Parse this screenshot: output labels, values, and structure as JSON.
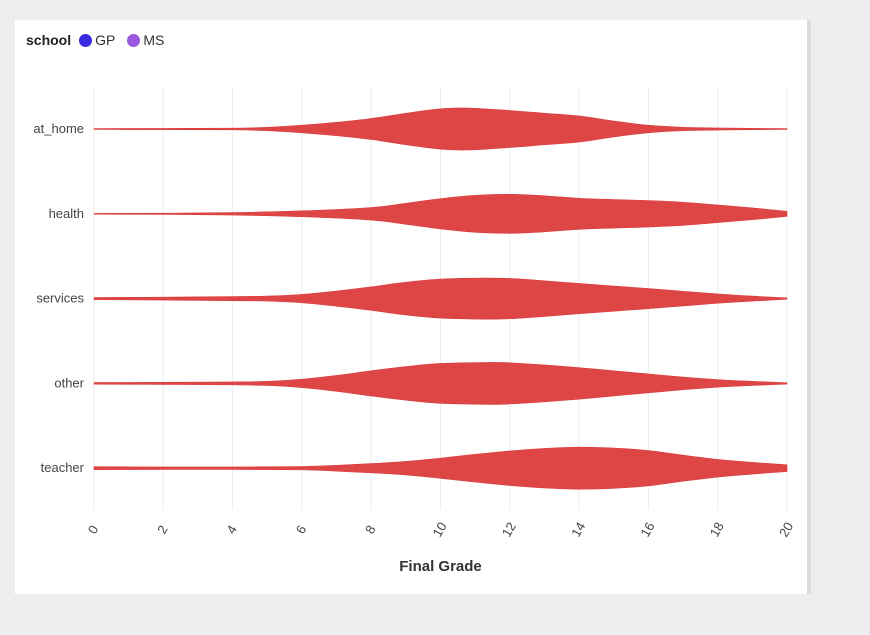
{
  "legend": {
    "title": "school",
    "items": [
      {
        "label": "GP",
        "color": "#3a2be0"
      },
      {
        "label": "MS",
        "color": "#9b59e0"
      }
    ]
  },
  "chart_data": {
    "type": "violin",
    "xlabel": "Final Grade",
    "ylabel": "",
    "xlim": [
      0,
      20
    ],
    "x_ticks": [
      0,
      2,
      4,
      6,
      8,
      10,
      12,
      14,
      16,
      18,
      20
    ],
    "grid": true,
    "categories": [
      "at_home",
      "health",
      "services",
      "other",
      "teacher"
    ],
    "violin_color": "#dc3c3c",
    "series": [
      {
        "name": "at_home",
        "density": [
          [
            0,
            0.02
          ],
          [
            2,
            0.03
          ],
          [
            4,
            0.04
          ],
          [
            5,
            0.08
          ],
          [
            6,
            0.18
          ],
          [
            7,
            0.32
          ],
          [
            8,
            0.5
          ],
          [
            9,
            0.75
          ],
          [
            10,
            0.96
          ],
          [
            10.8,
            1.0
          ],
          [
            12,
            0.88
          ],
          [
            13,
            0.75
          ],
          [
            14,
            0.62
          ],
          [
            15,
            0.38
          ],
          [
            16,
            0.18
          ],
          [
            17,
            0.08
          ],
          [
            18,
            0.05
          ],
          [
            20,
            0.02
          ]
        ]
      },
      {
        "name": "health",
        "density": [
          [
            0,
            0.02
          ],
          [
            2,
            0.03
          ],
          [
            4,
            0.06
          ],
          [
            6,
            0.14
          ],
          [
            8,
            0.3
          ],
          [
            9,
            0.5
          ],
          [
            10,
            0.72
          ],
          [
            11,
            0.88
          ],
          [
            12,
            0.93
          ],
          [
            13,
            0.86
          ],
          [
            14,
            0.74
          ],
          [
            15,
            0.68
          ],
          [
            16,
            0.63
          ],
          [
            17,
            0.55
          ],
          [
            18,
            0.42
          ],
          [
            19,
            0.28
          ],
          [
            20,
            0.12
          ]
        ]
      },
      {
        "name": "services",
        "density": [
          [
            0,
            0.05
          ],
          [
            2,
            0.07
          ],
          [
            4,
            0.1
          ],
          [
            5,
            0.12
          ],
          [
            6,
            0.2
          ],
          [
            7,
            0.36
          ],
          [
            8,
            0.56
          ],
          [
            9,
            0.78
          ],
          [
            10,
            0.93
          ],
          [
            11.2,
            0.98
          ],
          [
            12,
            0.96
          ],
          [
            13,
            0.85
          ],
          [
            14,
            0.72
          ],
          [
            15,
            0.6
          ],
          [
            16,
            0.48
          ],
          [
            17,
            0.35
          ],
          [
            18,
            0.22
          ],
          [
            19,
            0.12
          ],
          [
            20,
            0.03
          ]
        ]
      },
      {
        "name": "other",
        "density": [
          [
            0,
            0.04
          ],
          [
            2,
            0.05
          ],
          [
            4,
            0.07
          ],
          [
            5,
            0.1
          ],
          [
            6,
            0.2
          ],
          [
            7,
            0.38
          ],
          [
            8,
            0.6
          ],
          [
            9,
            0.8
          ],
          [
            10,
            0.95
          ],
          [
            11.5,
            1.0
          ],
          [
            12,
            0.98
          ],
          [
            13,
            0.88
          ],
          [
            14,
            0.75
          ],
          [
            15,
            0.6
          ],
          [
            16,
            0.45
          ],
          [
            17,
            0.3
          ],
          [
            18,
            0.18
          ],
          [
            19,
            0.1
          ],
          [
            20,
            0.03
          ]
        ]
      },
      {
        "name": "teacher",
        "density": [
          [
            0,
            0.07
          ],
          [
            2,
            0.06
          ],
          [
            4,
            0.06
          ],
          [
            6,
            0.08
          ],
          [
            7,
            0.14
          ],
          [
            8,
            0.22
          ],
          [
            9,
            0.32
          ],
          [
            10,
            0.48
          ],
          [
            11,
            0.66
          ],
          [
            12,
            0.82
          ],
          [
            13,
            0.94
          ],
          [
            14,
            1.0
          ],
          [
            15,
            0.96
          ],
          [
            16,
            0.84
          ],
          [
            17,
            0.62
          ],
          [
            18,
            0.42
          ],
          [
            19,
            0.28
          ],
          [
            20,
            0.16
          ]
        ]
      }
    ]
  }
}
